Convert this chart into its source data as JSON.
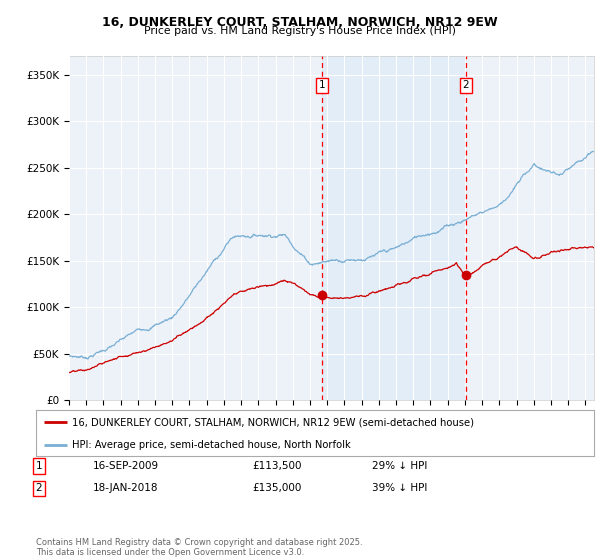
{
  "title": "16, DUNKERLEY COURT, STALHAM, NORWICH, NR12 9EW",
  "subtitle": "Price paid vs. HM Land Registry's House Price Index (HPI)",
  "ylabel_ticks": [
    "£0",
    "£50K",
    "£100K",
    "£150K",
    "£200K",
    "£250K",
    "£300K",
    "£350K"
  ],
  "ytick_values": [
    0,
    50000,
    100000,
    150000,
    200000,
    250000,
    300000,
    350000
  ],
  "ylim": [
    0,
    370000
  ],
  "xlim_start": 1995.0,
  "xlim_end": 2025.5,
  "sale1": {
    "date_num": 2009.71,
    "price": 113500,
    "label": "1",
    "date_str": "16-SEP-2009",
    "note": "29% ↓ HPI"
  },
  "sale2": {
    "date_num": 2018.04,
    "price": 135000,
    "label": "2",
    "date_str": "18-JAN-2018",
    "note": "39% ↓ HPI"
  },
  "hpi_color": "#7aafd4",
  "price_color": "#cc0000",
  "legend_label_price": "16, DUNKERLEY COURT, STALHAM, NORWICH, NR12 9EW (semi-detached house)",
  "legend_label_hpi": "HPI: Average price, semi-detached house, North Norfolk",
  "footnote": "Contains HM Land Registry data © Crown copyright and database right 2025.\nThis data is licensed under the Open Government Licence v3.0.",
  "background_color": "#ffffff",
  "plot_bg_color": "#edf2f9",
  "shade_color": "#d0e4f5",
  "grid_color": "#ffffff"
}
